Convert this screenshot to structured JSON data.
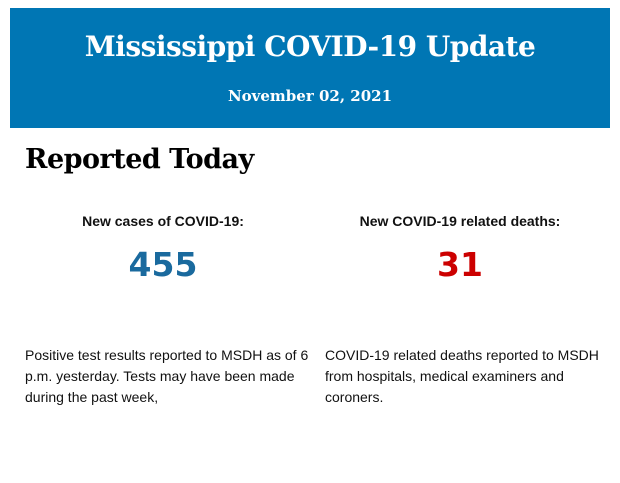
{
  "header": {
    "title": "Mississippi COVID-19 Update",
    "date": "November 02, 2021"
  },
  "section": {
    "title": "Reported Today"
  },
  "cases": {
    "label": "New cases of COVID-19:",
    "value": "455",
    "color": "#1a6a9e",
    "description": "Positive test results reported to MSDH as of 6 p.m. yesterday. Tests may have been made during the past week,"
  },
  "deaths": {
    "label": "New COVID-19 related deaths:",
    "value": "31",
    "color": "#cc0000",
    "description": "COVID-19 related deaths reported to MSDH from hospitals, medical examiners and coroners."
  }
}
